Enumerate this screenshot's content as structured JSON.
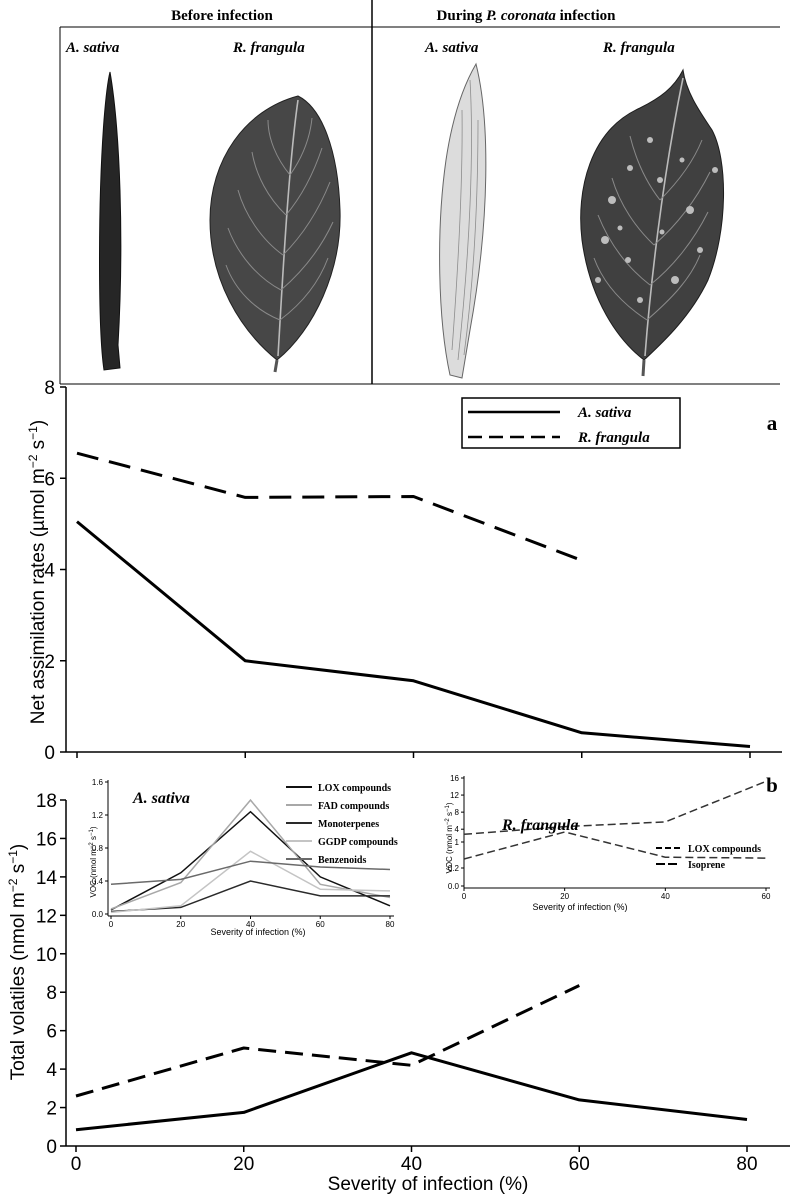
{
  "photo_panel": {
    "headers": [
      {
        "text": "Before infection"
      },
      {
        "text_pre": "During ",
        "text_italic": "P. coronata",
        "text_post": " infection"
      }
    ],
    "species_labels": [
      "A. sativa",
      "R. frangula",
      "A. sativa",
      "R. frangula"
    ]
  },
  "colors": {
    "axis": "#000000",
    "leaf_dark": "#3a3a3a",
    "leaf_pale": "#d8d8d8"
  },
  "chart_data": [
    {
      "id": "a",
      "type": "line",
      "panel_label": "a",
      "ylabel": "Net assimilation rates (µmol m−2 s−1)",
      "ylabel_parts": [
        "Net assimilation rates (µmol m",
        "−2",
        " s",
        "−1",
        ")"
      ],
      "xlim": [
        0,
        80
      ],
      "ylim": [
        0,
        8
      ],
      "yticks": [
        0,
        2,
        4,
        6,
        8
      ],
      "xticks_minor": [
        0,
        20,
        40,
        60,
        80
      ],
      "legend": {
        "placement": "top-right",
        "entries": [
          "A. sativa",
          "R. frangula"
        ]
      },
      "series": [
        {
          "name": "A. sativa",
          "style": "solid",
          "x": [
            0,
            20,
            40,
            60,
            80
          ],
          "y": [
            5.05,
            2.0,
            1.56,
            0.42,
            0.12
          ]
        },
        {
          "name": "R. frangula",
          "style": "dashed",
          "x": [
            0,
            20,
            40,
            60
          ],
          "y": [
            6.55,
            5.58,
            5.6,
            4.2
          ]
        }
      ]
    },
    {
      "id": "b",
      "type": "line",
      "panel_label": "b",
      "ylabel": "Total volatiles (nmol m−2 s−1)",
      "ylabel_parts": [
        "Total volatiles (nmol m",
        "−2",
        " s",
        "−1",
        ")"
      ],
      "xlabel": "Severity of infection (%)",
      "xlim": [
        0,
        80
      ],
      "ylim": [
        0,
        18
      ],
      "yticks": [
        0,
        2,
        4,
        6,
        8,
        10,
        12,
        14,
        16,
        18
      ],
      "xticks": [
        0,
        20,
        40,
        60,
        80
      ],
      "series": [
        {
          "name": "A. sativa",
          "style": "solid",
          "x": [
            0,
            20,
            40,
            60,
            80
          ],
          "y": [
            0.85,
            1.75,
            4.85,
            2.4,
            1.38
          ]
        },
        {
          "name": "R. frangula",
          "style": "dashed",
          "x": [
            0,
            20,
            40,
            60
          ],
          "y": [
            2.6,
            5.1,
            4.2,
            8.35
          ]
        }
      ]
    },
    {
      "id": "inset-a",
      "type": "line",
      "title": "A. sativa",
      "ylabel": "VOC (nmol m−2 s−1)",
      "ylabel_parts": [
        "VOC (nmol m",
        "−2",
        " s",
        "−1",
        ")"
      ],
      "xlabel": "Severity of infection (%)",
      "xlim": [
        0,
        80
      ],
      "ylim": [
        0,
        1.6
      ],
      "yticks": [
        0,
        0.4,
        0.8,
        1.2,
        1.6
      ],
      "ytick_labels": [
        "0.0",
        "0.4",
        "0.8",
        "1.2",
        "1.6"
      ],
      "xticks": [
        0,
        20,
        40,
        60,
        80
      ],
      "legend": {
        "placement": "top-right",
        "entries": [
          "LOX compounds",
          "FAD compounds",
          "Monoterpenes",
          "GGDP compounds",
          "Benzenoids"
        ]
      },
      "series": [
        {
          "name": "LOX compounds",
          "color": "#111111",
          "x": [
            0,
            20,
            40,
            60,
            80
          ],
          "y": [
            0.05,
            0.5,
            1.24,
            0.45,
            0.1
          ]
        },
        {
          "name": "FAD compounds",
          "color": "#a8a8a8",
          "x": [
            0,
            20,
            40,
            60,
            80
          ],
          "y": [
            0.06,
            0.38,
            1.38,
            0.36,
            0.2
          ]
        },
        {
          "name": "Monoterpenes",
          "color": "#2a2a2a",
          "x": [
            0,
            20,
            40,
            60,
            80
          ],
          "y": [
            0.03,
            0.08,
            0.4,
            0.22,
            0.22
          ]
        },
        {
          "name": "GGDP compounds",
          "color": "#c4c4c4",
          "x": [
            0,
            20,
            40,
            60,
            80
          ],
          "y": [
            0.02,
            0.1,
            0.76,
            0.3,
            0.28
          ]
        },
        {
          "name": "Benzenoids",
          "color": "#6a6a6a",
          "x": [
            0,
            20,
            40,
            60,
            80
          ],
          "y": [
            0.36,
            0.42,
            0.64,
            0.57,
            0.54
          ]
        }
      ]
    },
    {
      "id": "inset-b",
      "type": "line",
      "title": "R. frangula",
      "ylabel": "VOC (nmol m−2 s−1)",
      "ylabel_parts": [
        "VOC (nmol m",
        "−2",
        " s",
        "−1",
        ")"
      ],
      "xlabel": "Severity of infection (%)",
      "xlim": [
        0,
        60
      ],
      "ylim_lower": [
        0,
        1
      ],
      "ylim_upper": [
        1,
        16
      ],
      "ytick_labels": [
        "0.0",
        "0.2",
        "1",
        "4",
        "8",
        "12",
        "16"
      ],
      "xticks": [
        0,
        20,
        40,
        60
      ],
      "legend": {
        "placement": "right",
        "entries": [
          "LOX compounds",
          "Isoprene"
        ]
      },
      "series": [
        {
          "name": "LOX compounds",
          "style": "dashed",
          "x": [
            0,
            20,
            40,
            60
          ],
          "y": [
            0.3,
            0.6,
            0.32,
            0.31
          ]
        },
        {
          "name": "Isoprene",
          "style": "dashed",
          "x": [
            0,
            20,
            40,
            60
          ],
          "y": [
            2.8,
            4.6,
            5.7,
            15.2
          ]
        }
      ]
    }
  ]
}
